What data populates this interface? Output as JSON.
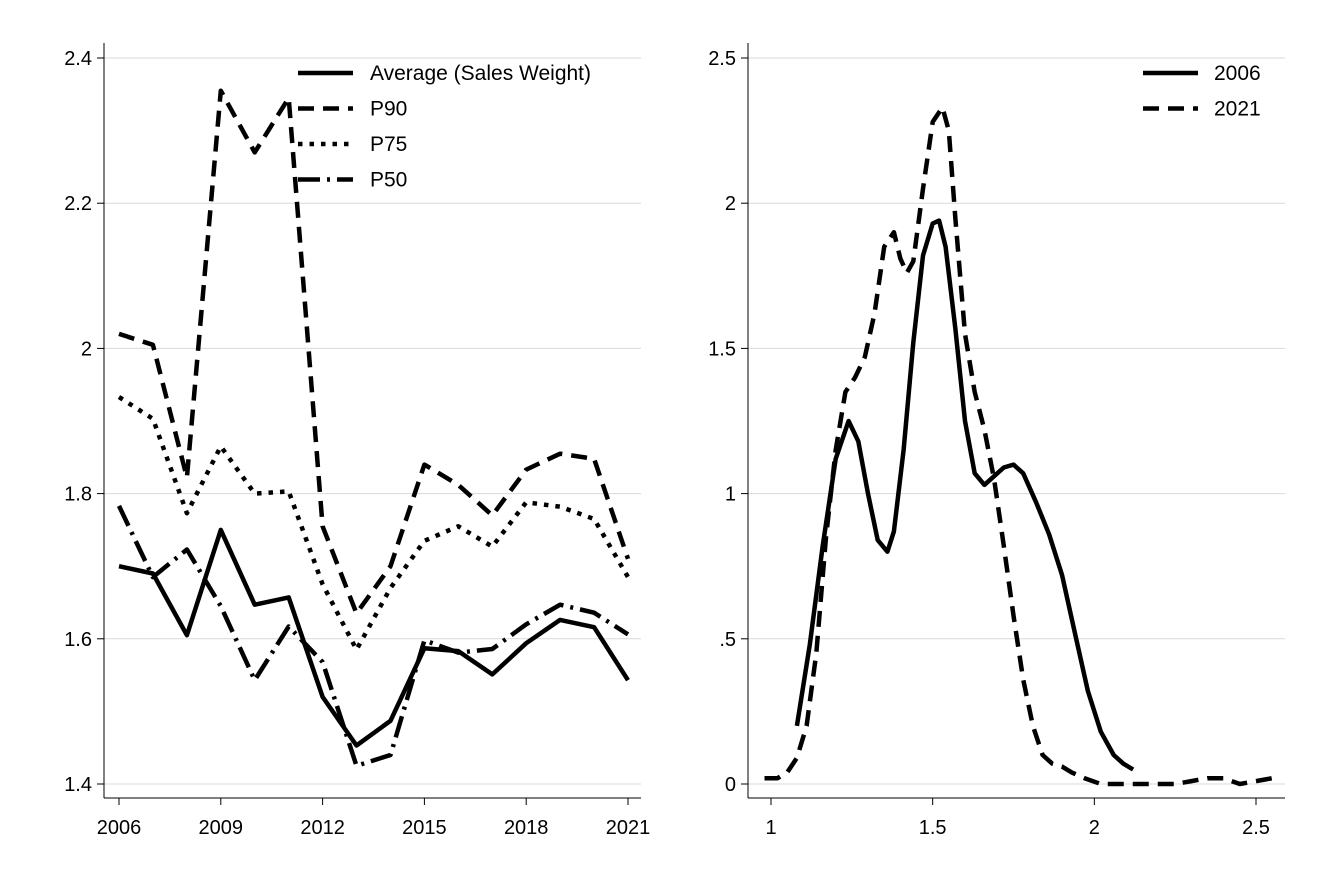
{
  "chart_data": [
    {
      "type": "line",
      "x": [
        2006,
        2007,
        2008,
        2009,
        2010,
        2011,
        2012,
        2013,
        2014,
        2015,
        2016,
        2017,
        2018,
        2019,
        2020,
        2021
      ],
      "xticks": [
        2006,
        2009,
        2012,
        2015,
        2018,
        2021
      ],
      "xtick_labels": [
        "2006",
        "2009",
        "2012",
        "2015",
        "2018",
        "2021"
      ],
      "xlim": [
        2006,
        2021
      ],
      "ylim": [
        1.4,
        2.4
      ],
      "yticks": [
        1.4,
        1.6,
        1.8,
        2.0,
        2.2,
        2.4
      ],
      "ytick_labels": [
        "1.4",
        "1.6",
        "1.8",
        "2",
        "2.2",
        "2.4"
      ],
      "xlabel": "",
      "ylabel": "",
      "grid": "horizontal",
      "legend_position": "top-right",
      "series": [
        {
          "name": "Average (Sales Weight)",
          "style": "solid",
          "values": [
            1.7,
            1.69,
            1.605,
            1.75,
            1.647,
            1.657,
            1.52,
            1.453,
            1.487,
            1.587,
            1.583,
            1.551,
            1.594,
            1.626,
            1.616,
            1.543
          ]
        },
        {
          "name": "P90",
          "style": "dash",
          "values": [
            2.02,
            2.005,
            1.822,
            2.355,
            2.27,
            2.345,
            1.755,
            1.635,
            1.7,
            1.84,
            1.812,
            1.77,
            1.833,
            1.855,
            1.848,
            1.71
          ]
        },
        {
          "name": "P75",
          "style": "dot",
          "values": [
            1.933,
            1.903,
            1.773,
            1.865,
            1.8,
            1.803,
            1.675,
            1.585,
            1.67,
            1.735,
            1.755,
            1.727,
            1.788,
            1.782,
            1.765,
            1.685
          ]
        },
        {
          "name": "P50",
          "style": "dashdot",
          "values": [
            1.783,
            1.685,
            1.723,
            1.645,
            1.543,
            1.617,
            1.568,
            1.425,
            1.44,
            1.598,
            1.581,
            1.586,
            1.62,
            1.647,
            1.636,
            1.606
          ]
        }
      ]
    },
    {
      "type": "line",
      "xlim": [
        0.95,
        2.6
      ],
      "ylim": [
        0,
        2.5
      ],
      "xticks": [
        1,
        1.5,
        2,
        2.5
      ],
      "xtick_labels": [
        "1",
        "1.5",
        "2",
        "2.5"
      ],
      "yticks": [
        0,
        0.5,
        1,
        1.5,
        2,
        2.5
      ],
      "ytick_labels": [
        "0",
        ".5",
        "1",
        "1.5",
        "2",
        "2.5"
      ],
      "xlabel": "",
      "ylabel": "",
      "grid": "horizontal",
      "legend_position": "top-right",
      "series": [
        {
          "name": "2006",
          "style": "solid",
          "x": [
            1.08,
            1.12,
            1.16,
            1.2,
            1.24,
            1.27,
            1.3,
            1.33,
            1.36,
            1.38,
            1.41,
            1.44,
            1.47,
            1.5,
            1.52,
            1.54,
            1.57,
            1.6,
            1.63,
            1.66,
            1.69,
            1.72,
            1.75,
            1.78,
            1.82,
            1.86,
            1.9,
            1.94,
            1.98,
            2.02,
            2.06,
            2.09,
            2.12
          ],
          "y": [
            0.2,
            0.48,
            0.82,
            1.12,
            1.25,
            1.18,
            1.0,
            0.84,
            0.8,
            0.87,
            1.15,
            1.52,
            1.82,
            1.93,
            1.94,
            1.85,
            1.57,
            1.25,
            1.07,
            1.03,
            1.06,
            1.09,
            1.1,
            1.07,
            0.97,
            0.86,
            0.72,
            0.52,
            0.32,
            0.18,
            0.1,
            0.07,
            0.05
          ]
        },
        {
          "name": "2021",
          "style": "dash",
          "x": [
            0.98,
            1.02,
            1.05,
            1.08,
            1.11,
            1.14,
            1.17,
            1.2,
            1.23,
            1.26,
            1.29,
            1.32,
            1.35,
            1.38,
            1.4,
            1.42,
            1.44,
            1.47,
            1.5,
            1.53,
            1.55,
            1.57,
            1.6,
            1.63,
            1.66,
            1.69,
            1.72,
            1.75,
            1.78,
            1.81,
            1.84,
            1.87,
            1.9,
            1.93,
            1.97,
            2.02,
            2.08,
            2.15,
            2.25,
            2.3,
            2.35,
            2.4,
            2.45,
            2.5,
            2.55
          ],
          "y": [
            0.02,
            0.02,
            0.04,
            0.09,
            0.2,
            0.45,
            0.85,
            1.15,
            1.35,
            1.4,
            1.47,
            1.62,
            1.85,
            1.9,
            1.81,
            1.76,
            1.8,
            2.05,
            2.28,
            2.33,
            2.25,
            1.95,
            1.55,
            1.35,
            1.22,
            1.05,
            0.82,
            0.58,
            0.36,
            0.2,
            0.1,
            0.07,
            0.06,
            0.04,
            0.02,
            0.0,
            0.0,
            0.0,
            0.0,
            0.01,
            0.02,
            0.02,
            0.0,
            0.01,
            0.02
          ]
        }
      ]
    }
  ]
}
